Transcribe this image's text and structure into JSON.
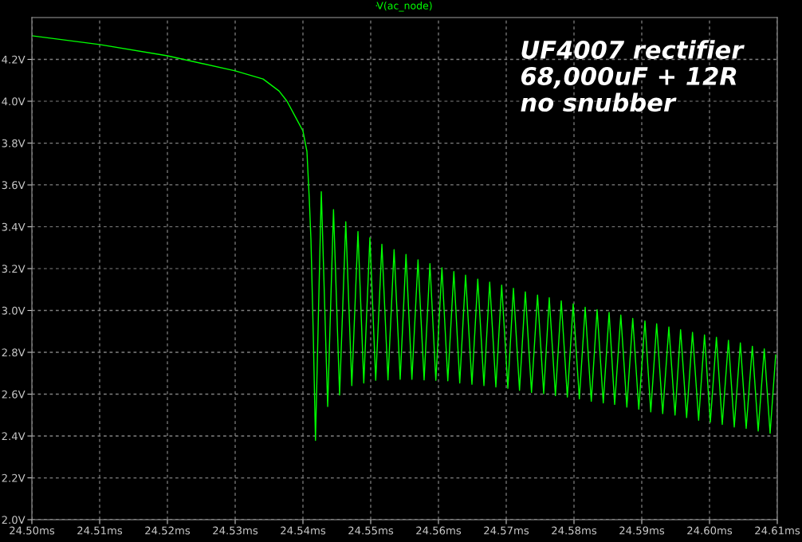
{
  "chart_data": {
    "type": "line",
    "annotations": [
      "UF4007 rectifier\n68,000uF + 12R\nno snubber"
    ],
    "xlim": [
      24.5,
      24.61
    ],
    "xticks": [
      {
        "value": 24.5,
        "label": "24.50ms"
      },
      {
        "value": 24.51,
        "label": "24.51ms"
      },
      {
        "value": 24.52,
        "label": "24.52ms"
      },
      {
        "value": 24.53,
        "label": "24.53ms"
      },
      {
        "value": 24.54,
        "label": "24.54ms"
      },
      {
        "value": 24.55,
        "label": "24.55ms"
      },
      {
        "value": 24.56,
        "label": "24.56ms"
      },
      {
        "value": 24.57,
        "label": "24.57ms"
      },
      {
        "value": 24.58,
        "label": "24.58ms"
      },
      {
        "value": 24.59,
        "label": "24.59ms"
      },
      {
        "value": 24.6,
        "label": "24.60ms"
      },
      {
        "value": 24.61,
        "label": "24.61ms"
      }
    ],
    "ylim": [
      2.0,
      4.4
    ],
    "yticks": [
      {
        "value": 2.0,
        "label": "2.0V"
      },
      {
        "value": 2.2,
        "label": "2.2V"
      },
      {
        "value": 2.4,
        "label": "2.4V"
      },
      {
        "value": 2.6,
        "label": "2.6V"
      },
      {
        "value": 2.8,
        "label": "2.8V"
      },
      {
        "value": 3.0,
        "label": "3.0V"
      },
      {
        "value": 3.2,
        "label": "3.2V"
      },
      {
        "value": 3.4,
        "label": "3.4V"
      },
      {
        "value": 3.6,
        "label": "3.6V"
      },
      {
        "value": 3.8,
        "label": "3.8V"
      },
      {
        "value": 4.0,
        "label": "4.0V"
      },
      {
        "value": 4.2,
        "label": "4.2V"
      }
    ],
    "grid": true,
    "legend": "top",
    "marker": "none",
    "line_style": "solid",
    "series": [
      {
        "name": "V(ac_node)",
        "color": "#00ff00",
        "x": [
          24.5,
          24.51,
          24.52,
          24.53,
          24.53412,
          24.53647,
          24.53765,
          24.53906,
          24.54,
          24.54059,
          24.54094,
          24.54118,
          24.54153,
          24.54185,
          24.54271,
          24.54365,
          24.54451,
          24.54541,
          24.54632,
          24.54721,
          24.54812,
          24.54898,
          24.54988,
          24.55074,
          24.55165,
          24.55255,
          24.55345,
          24.55435,
          24.55521,
          24.55608,
          24.55698,
          24.55788,
          24.55874,
          24.55961,
          24.56051,
          24.56138,
          24.56227,
          24.56314,
          24.564,
          24.56494,
          24.5658,
          24.56671,
          24.56756,
          24.56847,
          24.56933,
          24.57024,
          24.57106,
          24.57196,
          24.57282,
          24.57373,
          24.57462,
          24.57553,
          24.57635,
          24.57726,
          24.57812,
          24.57902,
          24.57988,
          24.58079,
          24.58165,
          24.58255,
          24.58341,
          24.58432,
          24.58518,
          24.586,
          24.58691,
          24.5878,
          24.58867,
          24.58956,
          24.59047,
          24.59133,
          24.5922,
          24.59309,
          24.594,
          24.59491,
          24.59573,
          24.59662,
          24.59749,
          24.59839,
          24.59926,
          24.60012,
          24.60102,
          24.60188,
          24.60279,
          24.60365,
          24.60455,
          24.60541,
          24.60632,
          24.60718,
          24.60808,
          24.60894,
          24.60976
        ],
        "values": [
          4.313,
          4.271,
          4.217,
          4.145,
          4.106,
          4.049,
          4.0,
          3.915,
          3.858,
          3.76,
          3.53,
          3.34,
          2.88,
          2.379,
          3.568,
          2.541,
          3.482,
          2.596,
          3.424,
          2.641,
          3.377,
          2.653,
          3.348,
          2.666,
          3.316,
          2.668,
          3.291,
          2.671,
          3.268,
          2.671,
          3.242,
          2.668,
          3.224,
          2.666,
          3.204,
          2.664,
          3.186,
          2.653,
          3.169,
          2.647,
          3.15,
          2.641,
          3.135,
          2.634,
          3.121,
          2.628,
          3.106,
          2.618,
          3.089,
          2.608,
          3.074,
          2.602,
          3.061,
          2.593,
          3.046,
          2.586,
          3.032,
          2.577,
          3.015,
          2.566,
          3.004,
          2.558,
          2.991,
          2.551,
          2.978,
          2.538,
          2.962,
          2.528,
          2.95,
          2.515,
          2.936,
          2.507,
          2.921,
          2.5,
          2.908,
          2.488,
          2.895,
          2.475,
          2.883,
          2.466,
          2.872,
          2.455,
          2.857,
          2.443,
          2.845,
          2.436,
          2.829,
          2.424,
          2.816,
          2.413,
          2.787
        ]
      }
    ]
  }
}
